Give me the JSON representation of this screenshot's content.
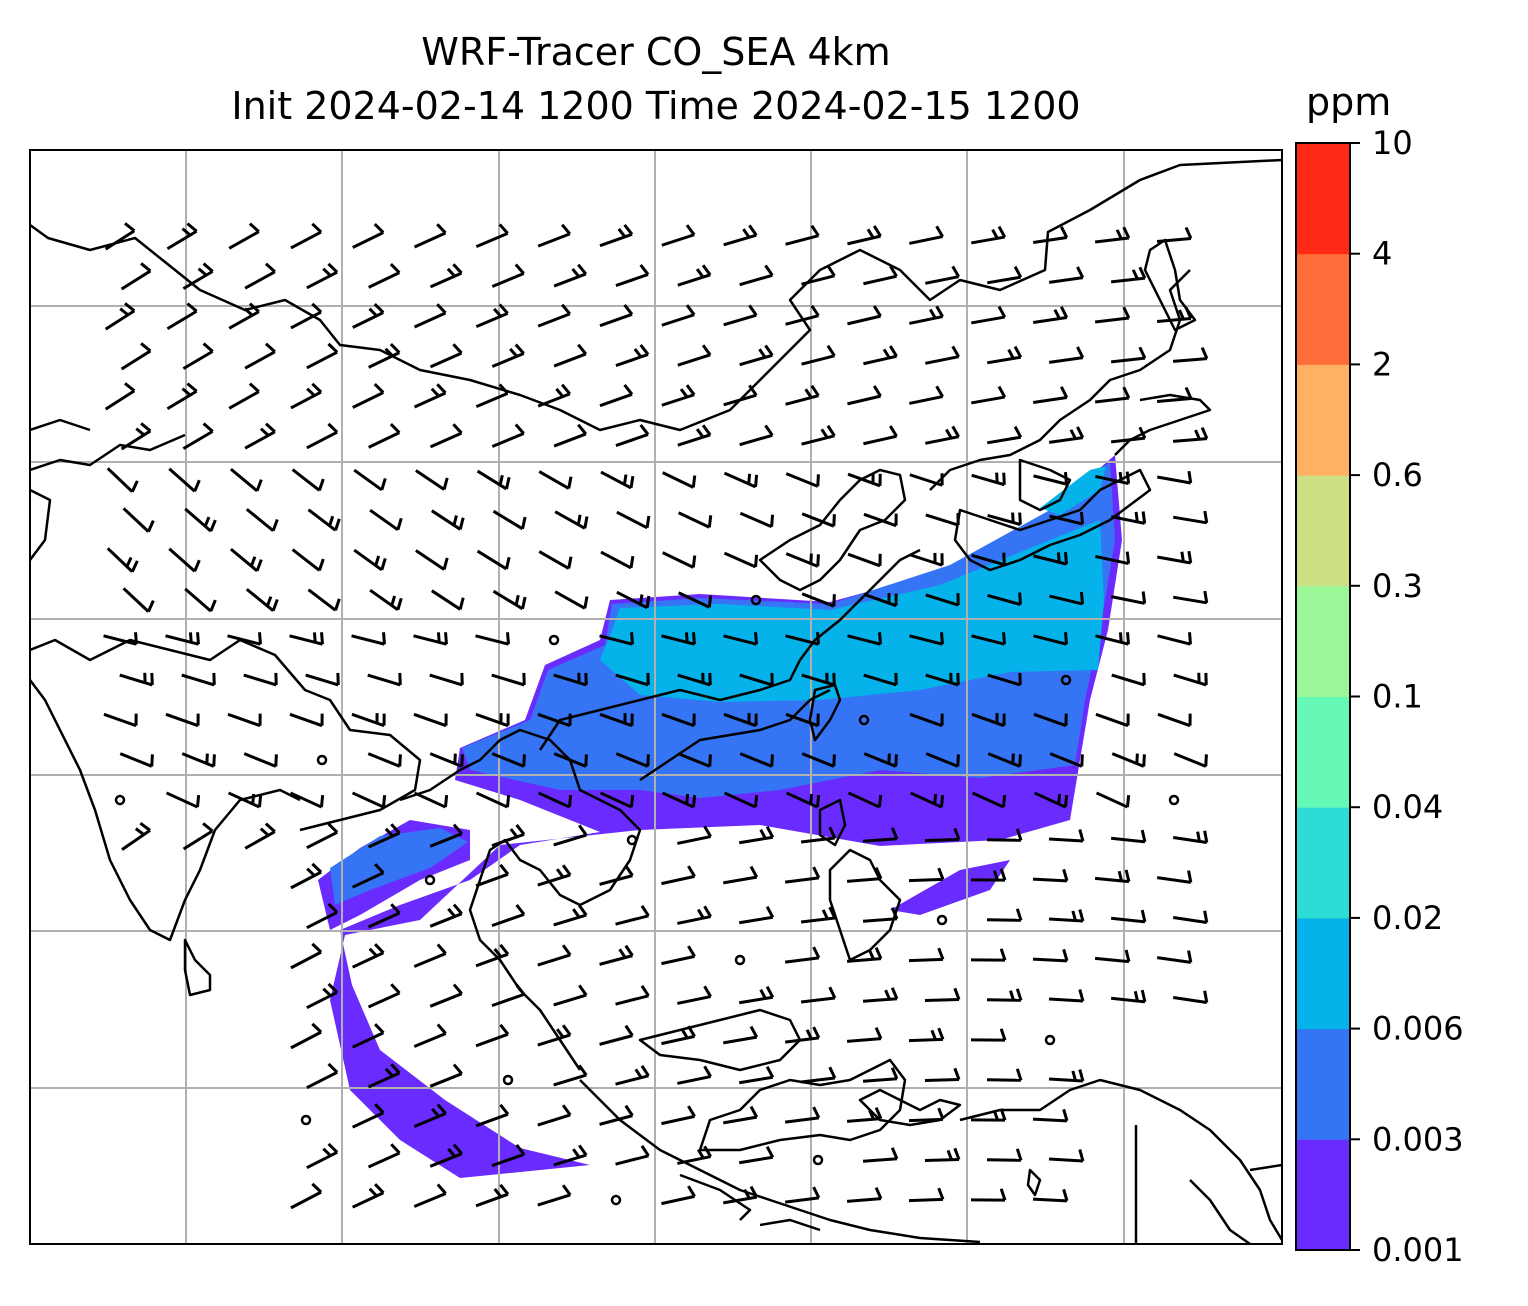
{
  "title": {
    "line1": "WRF-Tracer CO_SEA 4km",
    "line2": "Init 2024-02-14 1200 Time 2024-02-15 1200"
  },
  "colorbar": {
    "unit": "ppm",
    "levels": [
      "0.001",
      "0.003",
      "0.006",
      "0.02",
      "0.04",
      "0.1",
      "0.3",
      "0.6",
      "2",
      "4",
      "10"
    ],
    "colors": [
      "#6a2bff",
      "#3574f5",
      "#05b3ea",
      "#2ddcd4",
      "#65f8b6",
      "#9af898",
      "#cddf85",
      "#ffb062",
      "#ff6e3a",
      "#ff2a16"
    ]
  },
  "map": {
    "gridlines": true,
    "tracer_colors": {
      "low": "#6a2bff",
      "mid": "#3574f5",
      "high": "#05b3ea"
    },
    "coastline_color": "#000000",
    "wind_barb_color": "#000000"
  }
}
